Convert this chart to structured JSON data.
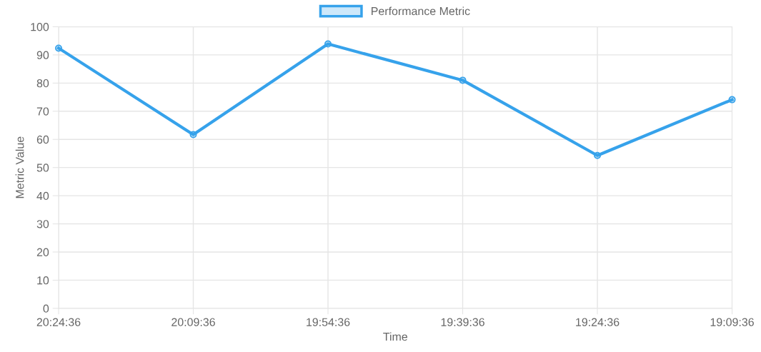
{
  "chart_data": {
    "type": "line",
    "xlabel": "Time",
    "ylabel": "Metric Value",
    "categories": [
      "20:24:36",
      "20:09:36",
      "19:54:36",
      "19:39:36",
      "19:24:36",
      "19:09:36"
    ],
    "series": [
      {
        "name": "Performance Metric",
        "color": "#36a2eb",
        "values": [
          92.4,
          61.7,
          93.9,
          81.0,
          54.3,
          74.1
        ]
      }
    ],
    "ylim": [
      0,
      100
    ],
    "yticks": [
      0,
      10,
      20,
      30,
      40,
      50,
      60,
      70,
      80,
      90,
      100
    ],
    "grid": true,
    "legend": "top",
    "marker": "circle",
    "line_style": "solid"
  }
}
